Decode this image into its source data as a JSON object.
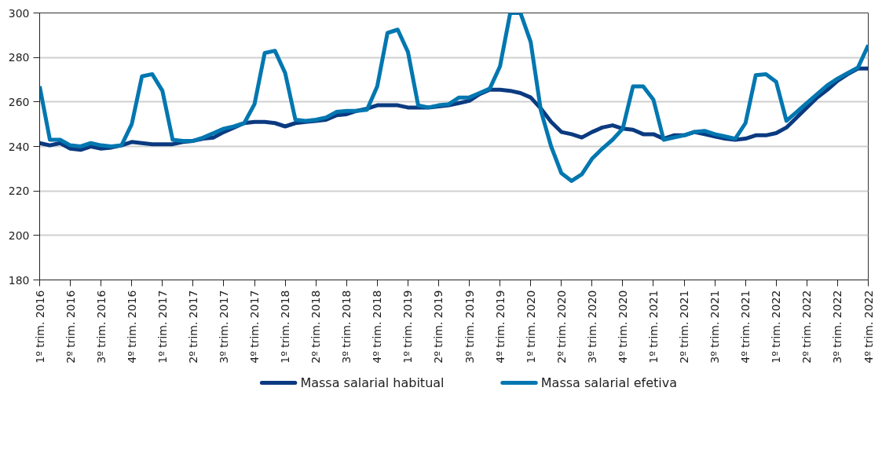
{
  "chart_data": {
    "type": "line",
    "categories": [
      "1º trim. 2016",
      null,
      null,
      "2º trim. 2016",
      null,
      null,
      "3º trim. 2016",
      null,
      null,
      "4º trim. 2016",
      null,
      null,
      "1º trim. 2017",
      null,
      null,
      "2º trim. 2017",
      null,
      null,
      "3º trim. 2017",
      null,
      null,
      "4º trim. 2017",
      null,
      null,
      "1º trim. 2018",
      null,
      null,
      "2º trim. 2018",
      null,
      null,
      "3º trim. 2018",
      null,
      null,
      "4º trim. 2018",
      null,
      null,
      "1º trim. 2019",
      null,
      null,
      "2º trim. 2019",
      null,
      null,
      "3º trim. 2019",
      null,
      null,
      "4º trim. 2019",
      null,
      null,
      "1º trim. 2020",
      null,
      null,
      "2º trim. 2020",
      null,
      null,
      "3º trim. 2020",
      null,
      null,
      "4º trim. 2020",
      null,
      null,
      "1º trim. 2021",
      null,
      null,
      "2º trim. 2021",
      null,
      null,
      "3º trim. 2021",
      null,
      null,
      "4º trim. 2021",
      null,
      null,
      "1º trim. 2022",
      null,
      null,
      "2º trim. 2022",
      null,
      null,
      "3º trim. 2022",
      null,
      null,
      "4º trim. 2022"
    ],
    "series": [
      {
        "name": "Massa salarial habitual",
        "color": "#0b3a80",
        "values": [
          241.5,
          240.5,
          241.5,
          239,
          238.5,
          240,
          239,
          239.5,
          240.5,
          242,
          241.5,
          241,
          241,
          241,
          242,
          242.5,
          243.5,
          244,
          246.5,
          248.5,
          250.5,
          251,
          251,
          250.5,
          249,
          250.5,
          251,
          251.5,
          252,
          254,
          254.5,
          256,
          257,
          258.5,
          258.5,
          258.5,
          257.5,
          257.5,
          257.5,
          258,
          258.5,
          259.5,
          260.5,
          263.5,
          265.5,
          265.5,
          265,
          264,
          262,
          257,
          251,
          246.5,
          245.5,
          244,
          246.5,
          248.5,
          249.5,
          248,
          247.5,
          245.5,
          245.5,
          243.5,
          245,
          245,
          246.5,
          245.5,
          244.5,
          243.5,
          243,
          243.5,
          245,
          245,
          246,
          248.5,
          253,
          257.5,
          262,
          265.5,
          269.5,
          272.5,
          275,
          275
        ]
      },
      {
        "name": "Massa salarial efetiva",
        "color": "#0077b0",
        "values": [
          267,
          243,
          243,
          240.5,
          240,
          241.5,
          240.5,
          240,
          240.5,
          250,
          271.5,
          272.5,
          265,
          243,
          242.5,
          242.5,
          244,
          246,
          248,
          249,
          250.5,
          259,
          282,
          283,
          273,
          252,
          251.5,
          252,
          253,
          255.5,
          256,
          256,
          256.5,
          267,
          291,
          292.5,
          282.5,
          258.5,
          257.5,
          258.5,
          259,
          262,
          262,
          264,
          266,
          276,
          300,
          300,
          287,
          256,
          240,
          228,
          224.5,
          227.5,
          234.5,
          239,
          243,
          248,
          267,
          267,
          261,
          243,
          244,
          245,
          246.5,
          247,
          245.5,
          244.5,
          243.5,
          250.5,
          272,
          272.5,
          269,
          251.5,
          255.5,
          259.5,
          263.5,
          267.5,
          270.5,
          273,
          275.5,
          285.5
        ]
      }
    ],
    "ylim": [
      180,
      300
    ],
    "yticks": [
      180,
      200,
      220,
      240,
      260,
      280,
      300
    ],
    "grid": "y",
    "legend": "bottom",
    "marker": "none",
    "line_style": "solid"
  }
}
